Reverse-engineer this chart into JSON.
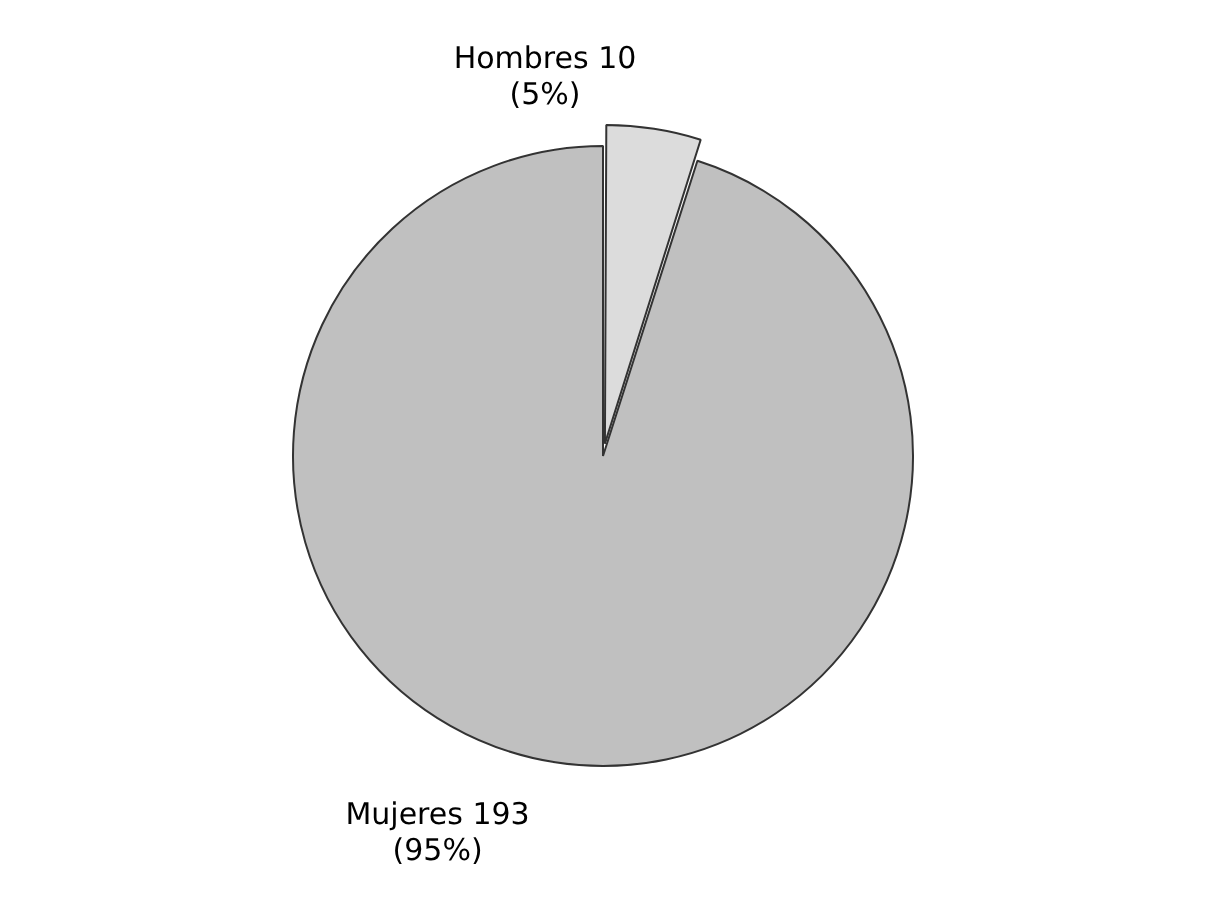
{
  "chart_data": {
    "type": "pie",
    "categories": [
      "Hombres",
      "Mujeres"
    ],
    "values": [
      10,
      193
    ],
    "colors": [
      "#dcdcdc",
      "#c0c0c0"
    ],
    "value_labels": [
      "10\n(5%)",
      "193\n(95%)"
    ],
    "legend": false
  }
}
